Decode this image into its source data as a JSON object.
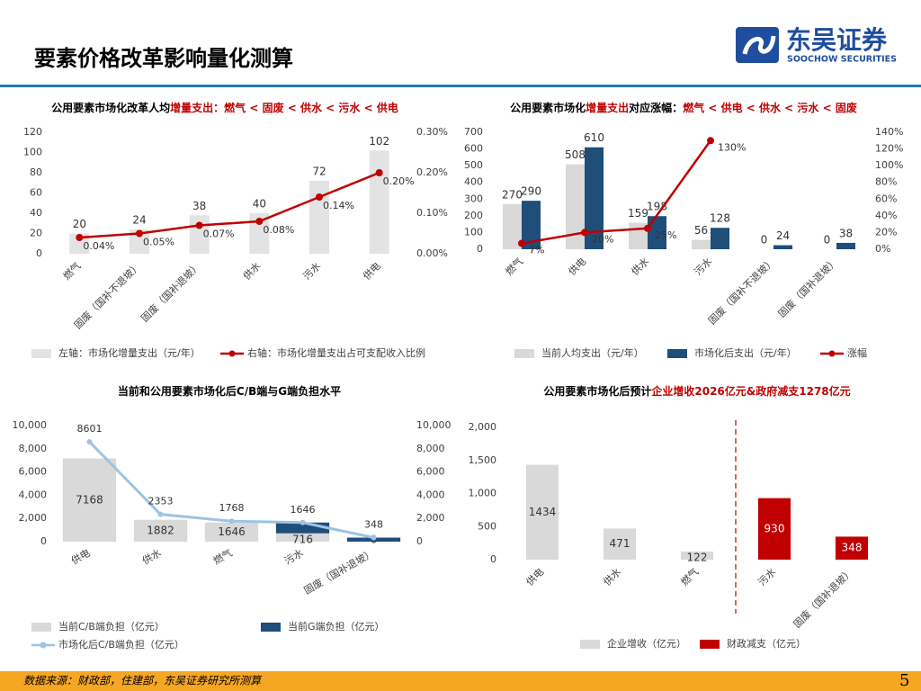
{
  "header": {
    "title": "要素价格改革影响量化测算",
    "logo_cn": "东吴证券",
    "logo_en": "SOOCHOW SECURITIES"
  },
  "footer": {
    "source": "数据来源：财政部，住建部，东吴证券研究所测算",
    "page": "5"
  },
  "chart_data": [
    {
      "type": "combo",
      "title": [
        {
          "text": "公用要素市场化改革人均",
          "color": "#000000"
        },
        {
          "text": "增量支出：燃气 < 固废 < 供水 < 污水 < 供电",
          "color": "#c00000"
        }
      ],
      "categories": [
        "燃气",
        "固废（国补不退坡）",
        "固废（国补退坡）",
        "供水",
        "污水",
        "供电"
      ],
      "ylim": [
        0,
        120
      ],
      "yticks": [
        0,
        20,
        40,
        60,
        80,
        100,
        120
      ],
      "y2lim": [
        0,
        0.3
      ],
      "y2ticks": [
        {
          "value": 0,
          "label": "0.00%"
        },
        {
          "value": 0.1,
          "label": "0.10%"
        },
        {
          "value": 0.2,
          "label": "0.20%"
        },
        {
          "value": 0.3,
          "label": "0.30%"
        }
      ],
      "series": [
        {
          "name": "左轴：市场化增量支出（元/年）",
          "type": "bar",
          "color": "#e3e3e3",
          "values": [
            20,
            24,
            38,
            40,
            72,
            102
          ]
        },
        {
          "name": "右轴：市场化增量支出占可支配收入比例",
          "type": "line",
          "axis": "y2",
          "color": "#c00000",
          "values": [
            0.04,
            0.05,
            0.07,
            0.08,
            0.14,
            0.2
          ],
          "value_labels": [
            "0.04%",
            "0.05%",
            "0.07%",
            "0.08%",
            "0.14%",
            "0.20%"
          ]
        }
      ]
    },
    {
      "type": "combo",
      "title": [
        {
          "text": "公用要素市场化",
          "color": "#000000"
        },
        {
          "text": "增量支出",
          "color": "#c00000"
        },
        {
          "text": "对应涨幅：",
          "color": "#000000"
        },
        {
          "text": "燃气 < 供电 < 供水 < 污水 < 固废",
          "color": "#c00000"
        }
      ],
      "categories": [
        "燃气",
        "供电",
        "供水",
        "污水",
        "固废（国补不退坡）",
        "固废（国补退坡）"
      ],
      "ylim": [
        0,
        700
      ],
      "yticks": [
        0,
        100,
        200,
        300,
        400,
        500,
        600,
        700
      ],
      "y2lim": [
        0,
        140
      ],
      "y2ticks": [
        {
          "value": 0,
          "label": "0%"
        },
        {
          "value": 20,
          "label": "20%"
        },
        {
          "value": 40,
          "label": "40%"
        },
        {
          "value": 60,
          "label": "60%"
        },
        {
          "value": 80,
          "label": "80%"
        },
        {
          "value": 100,
          "label": "100%"
        },
        {
          "value": 120,
          "label": "120%"
        },
        {
          "value": 140,
          "label": "140%"
        }
      ],
      "series": [
        {
          "name": "当前人均支出（元/年）",
          "type": "bar",
          "color": "#d9d9d9",
          "values": [
            270,
            508,
            159,
            56,
            0,
            0
          ]
        },
        {
          "name": "市场化后支出（元/年）",
          "type": "bar",
          "color": "#1f4e79",
          "values": [
            290,
            610,
            198,
            128,
            24,
            38
          ]
        },
        {
          "name": "涨幅",
          "type": "line",
          "axis": "y2",
          "color": "#c00000",
          "values": [
            7,
            20,
            25,
            130,
            null,
            null
          ],
          "value_labels": [
            "7%",
            "20%",
            "25%",
            "130%",
            null,
            null
          ]
        }
      ]
    },
    {
      "type": "combo",
      "title": [
        {
          "text": "当前和公用要素市场化后C/B端与G端负担水平",
          "color": "#000000"
        }
      ],
      "stacked": true,
      "categories": [
        "供电",
        "供水",
        "燃气",
        "污水",
        "固废（国补退坡）"
      ],
      "ylim": [
        0,
        10000
      ],
      "yticks": [
        0,
        {
          "value": 2000,
          "label": "2,000"
        },
        {
          "value": 4000,
          "label": "4,000"
        },
        {
          "value": 6000,
          "label": "6,000"
        },
        {
          "value": 8000,
          "label": "8,000"
        },
        {
          "value": 10000,
          "label": "10,000"
        }
      ],
      "y2lim": [
        0,
        10000
      ],
      "y2ticks": [
        0,
        {
          "value": 2000,
          "label": "2,000"
        },
        {
          "value": 4000,
          "label": "4,000"
        },
        {
          "value": 6000,
          "label": "6,000"
        },
        {
          "value": 8000,
          "label": "8,000"
        },
        {
          "value": 10000,
          "label": "10,000"
        }
      ],
      "series": [
        {
          "name": "当前C/B端负担（亿元）",
          "type": "bar",
          "color": "#d9d9d9",
          "values": [
            7168,
            1882,
            1646,
            716,
            0
          ]
        },
        {
          "name": "当前G端负担（亿元）",
          "type": "bar",
          "color": "#1f4e79",
          "data_labels": false,
          "values": [
            null,
            null,
            null,
            930,
            348
          ]
        },
        {
          "name": "市场化后C/B端负担（亿元）",
          "type": "line",
          "axis": "y2",
          "color": "#9dc3e6",
          "values": [
            8601,
            2353,
            1768,
            1646,
            348
          ]
        }
      ]
    },
    {
      "type": "bar",
      "title": [
        {
          "text": "公用要素市场化后预计",
          "color": "#000000"
        },
        {
          "text": "企业增收2026亿元&政府减支1278亿元",
          "color": "#c00000"
        }
      ],
      "stacked": true,
      "categories": [
        "供电",
        "供水",
        "燃气",
        "污水",
        "固废（国补退坡）"
      ],
      "ylim": [
        0,
        2000
      ],
      "yticks": [
        0,
        500,
        {
          "value": 1000,
          "label": "1,000"
        },
        {
          "value": 1500,
          "label": "1,500"
        },
        {
          "value": 2000,
          "label": "2,000"
        }
      ],
      "series": [
        {
          "name": "企业增收（亿元）",
          "type": "bar",
          "color": "#d9d9d9",
          "values": [
            1434,
            471,
            122,
            null,
            null
          ]
        },
        {
          "name": "财政减支（亿元）",
          "type": "bar",
          "color": "#c00000",
          "values": [
            null,
            null,
            null,
            930,
            348
          ]
        }
      ]
    }
  ]
}
